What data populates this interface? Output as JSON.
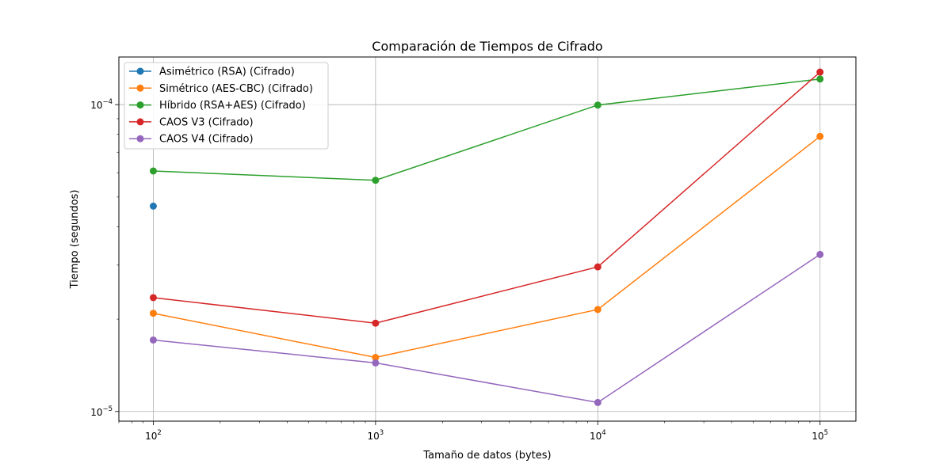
{
  "chart_data": {
    "type": "line",
    "title": "Comparación de Tiempos de Cifrado",
    "xlabel": "Tamaño de datos (bytes)",
    "ylabel": "Tiempo (segundos)",
    "x_scale": "log",
    "y_scale": "log",
    "x_ticks": [
      {
        "value": 100,
        "base": "10",
        "exp": "2"
      },
      {
        "value": 1000,
        "base": "10",
        "exp": "3"
      },
      {
        "value": 10000,
        "base": "10",
        "exp": "4"
      },
      {
        "value": 100000,
        "base": "10",
        "exp": "5"
      }
    ],
    "y_ticks": [
      {
        "value": 1e-05,
        "base": "10",
        "exp": "−5"
      },
      {
        "value": 0.0001,
        "base": "10",
        "exp": "−4"
      }
    ],
    "xlim": [
      70,
      145000
    ],
    "ylim": [
      9.3e-06,
      0.000143
    ],
    "grid": true,
    "legend_position": "upper-left",
    "series": [
      {
        "name": "Asimétrico (RSA) (Cifrado)",
        "color": "#1f77b4",
        "x": [
          100
        ],
        "y": [
          4.67e-05
        ]
      },
      {
        "name": "Simétrico (AES-CBC) (Cifrado)",
        "color": "#ff7f0e",
        "x": [
          100,
          1000,
          10000,
          100000
        ],
        "y": [
          2.09e-05,
          1.5e-05,
          2.15e-05,
          7.88e-05
        ]
      },
      {
        "name": "Híbrido (RSA+AES) (Cifrado)",
        "color": "#2ca02c",
        "x": [
          100,
          1000,
          10000,
          100000
        ],
        "y": [
          6.08e-05,
          5.67e-05,
          9.97e-05,
          0.0001212
        ]
      },
      {
        "name": "CAOS V3 (Cifrado)",
        "color": "#d62728",
        "x": [
          100,
          1000,
          10000,
          100000
        ],
        "y": [
          2.35e-05,
          1.94e-05,
          2.96e-05,
          0.0001277
        ]
      },
      {
        "name": "CAOS V4 (Cifrado)",
        "color": "#9467bd",
        "x": [
          100,
          1000,
          10000,
          100000
        ],
        "y": [
          1.71e-05,
          1.44e-05,
          1.07e-05,
          3.25e-05
        ]
      }
    ]
  }
}
